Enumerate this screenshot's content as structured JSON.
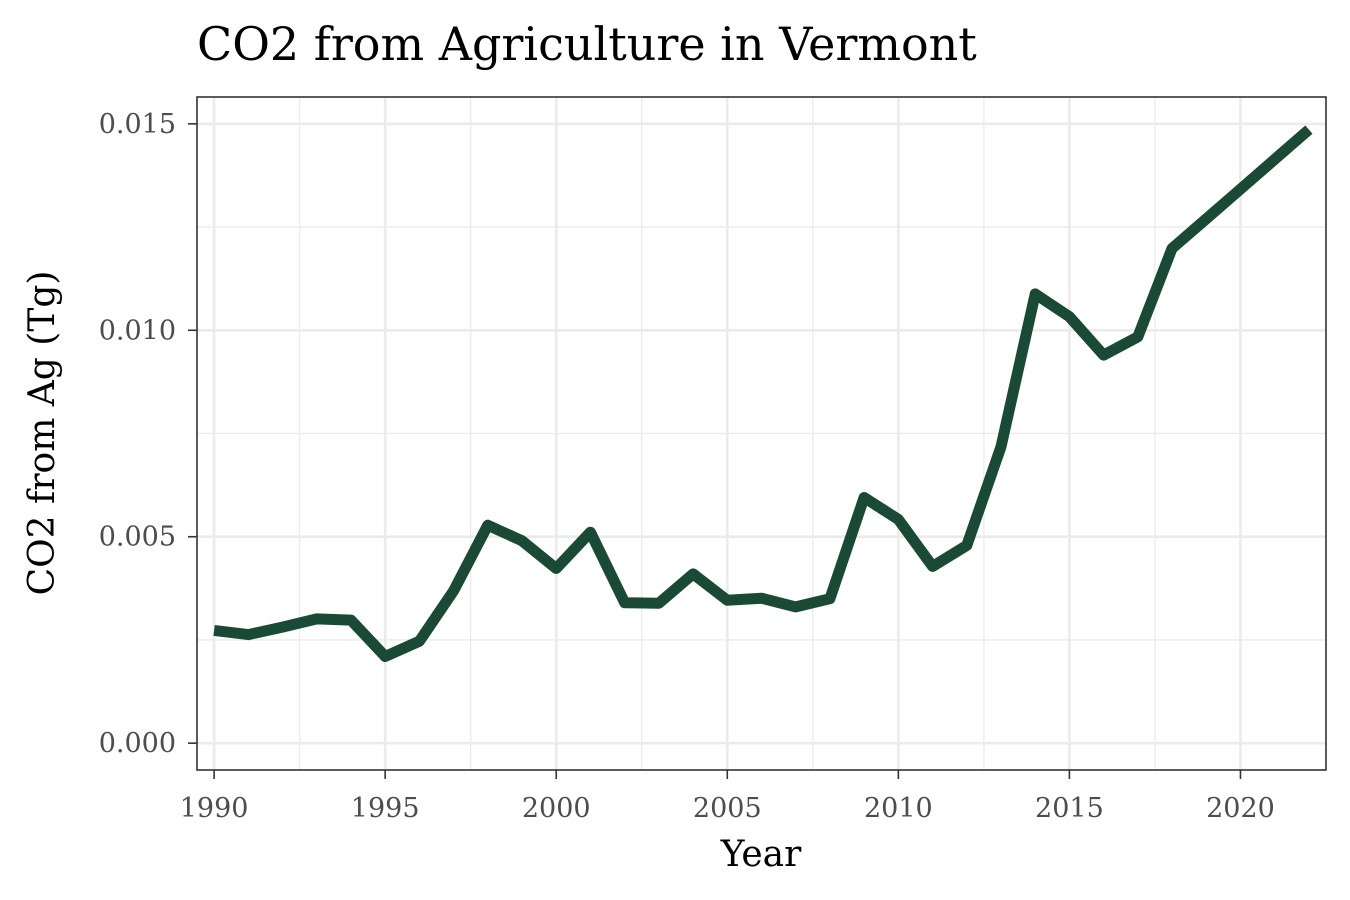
{
  "chart_data": {
    "type": "line",
    "title": "CO2 from Agriculture in Vermont",
    "xlabel": "Year",
    "ylabel": "CO2 from Ag (Tg)",
    "xlim": [
      1989.5,
      2022.5
    ],
    "ylim": [
      -0.00065,
      0.01565
    ],
    "x_ticks": [
      1990,
      1995,
      2000,
      2005,
      2010,
      2015,
      2020
    ],
    "x_tick_labels": [
      "1990",
      "1995",
      "2000",
      "2005",
      "2010",
      "2015",
      "2020"
    ],
    "x_minor_ticks": [
      1992.5,
      1997.5,
      2002.5,
      2007.5,
      2012.5,
      2017.5,
      2022.5
    ],
    "y_ticks": [
      0,
      0.005,
      0.01,
      0.015
    ],
    "y_tick_labels": [
      "0.000",
      "0.005",
      "0.010",
      "0.015"
    ],
    "y_minor_ticks": [
      0.0025,
      0.0075,
      0.0125
    ],
    "grid": true,
    "line_color": "#1a4a35",
    "series": [
      {
        "x": [
          1990,
          1991,
          1992,
          1993,
          1994,
          1995,
          1996,
          1997,
          1998,
          1999,
          2000,
          2001,
          2002,
          2003,
          2004,
          2005,
          2006,
          2007,
          2008,
          2009,
          2010,
          2011,
          2012,
          2013,
          2014,
          2015,
          2016,
          2017,
          2018,
          2019,
          2020,
          2021,
          2022
        ],
        "values": [
          0.00273,
          0.00263,
          0.00281,
          0.00301,
          0.00298,
          0.0021,
          0.00247,
          0.00369,
          0.00528,
          0.0049,
          0.00423,
          0.00511,
          0.0034,
          0.00339,
          0.0041,
          0.00346,
          0.00351,
          0.0033,
          0.0035,
          0.00595,
          0.00542,
          0.00428,
          0.00479,
          0.00718,
          0.01088,
          0.01033,
          0.0094,
          0.00984,
          0.01198,
          0.0127,
          0.01342,
          0.01414,
          0.01486
        ]
      }
    ]
  }
}
